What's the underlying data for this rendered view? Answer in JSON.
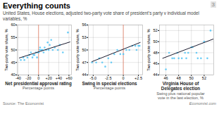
{
  "title": "Everything counts",
  "subtitle": "United States, House elections, adjusted two-party vote share of president’s party v individual model variables, %",
  "source": "Source: The Economist",
  "footer": "Economist.com",
  "annotation": "3",
  "chart_data": [
    {
      "type": "scatter",
      "xlabel": "Net presidential approval rating",
      "xlabel2": "Percentage points",
      "ylabel": "Two-party vote share, %",
      "xlim": [
        -42,
        65
      ],
      "ylim": [
        40,
        60
      ],
      "xticks": [
        -40,
        -20,
        0,
        {
          "value": 20,
          "label": "+20"
        },
        {
          "value": 40,
          "label": "+40"
        },
        {
          "value": 60,
          "label": "+60"
        }
      ],
      "yticks": [
        40,
        45,
        50,
        55,
        60
      ],
      "grid": true,
      "vline": {
        "x": 0,
        "color": "#e8836a"
      },
      "series": [
        {
          "type": "scatter",
          "color": "#5bc8f5",
          "x": [
            -35,
            -30,
            -28,
            -22,
            -18,
            -15,
            -12,
            -10,
            -8,
            -5,
            -3,
            -1,
            0,
            2,
            3,
            5,
            6,
            8,
            10,
            12,
            15,
            18,
            20,
            22,
            25,
            28,
            32,
            38,
            42,
            48,
            58
          ],
          "values": [
            46,
            47,
            46,
            47,
            48,
            49,
            47,
            48,
            48,
            49,
            47,
            49,
            49,
            50,
            51,
            50,
            50,
            50,
            49,
            51,
            50,
            53,
            50,
            52,
            54,
            50,
            51,
            50,
            52,
            49,
            57
          ]
        },
        {
          "type": "line",
          "color": "#1a1a2e",
          "x": [
            -38,
            62
          ],
          "values": [
            46.8,
            53.2
          ]
        }
      ]
    },
    {
      "type": "scatter",
      "xlabel": "Swing in special elections",
      "xlabel2": "Percentage points",
      "ylabel": "Two-party vote share, %",
      "xlim": [
        -5.8,
        3.2
      ],
      "ylim": [
        44,
        56
      ],
      "xticks": [
        {
          "value": -5.0,
          "label": "-5.0"
        },
        -2.5,
        0,
        {
          "value": 2.5,
          "label": "+2.5"
        }
      ],
      "yticks": [
        44,
        47,
        50,
        53,
        56
      ],
      "grid": true,
      "vline": {
        "x": 0,
        "color": "#e8836a"
      },
      "series": [
        {
          "type": "scatter",
          "color": "#5bc8f5",
          "x": [
            -5.2,
            -4.5,
            -4.0,
            -3.5,
            -3.0,
            -2.5,
            -2.0,
            -1.5,
            -1.0,
            -0.5,
            0.0,
            0.5,
            1.0,
            1.5,
            2.0,
            2.2,
            2.5,
            2.7
          ],
          "values": [
            47,
            47,
            48,
            47,
            46,
            48,
            47,
            49,
            50,
            49,
            49,
            50,
            50,
            51,
            51,
            50,
            51,
            51
          ]
        },
        {
          "type": "line",
          "color": "#1a1a2e",
          "x": [
            -5.2,
            2.8
          ],
          "values": [
            47.2,
            51.8
          ]
        }
      ]
    },
    {
      "type": "scatter",
      "xlabel": "Virginia House of\nDelegates election",
      "xlabel2": "Swing plus national popular\nvote in the last election, %",
      "ylabel": "Two-party vote share, %",
      "xlim": [
        45.0,
        53.5
      ],
      "ylim": [
        44,
        53
      ],
      "xticks": [
        46,
        48,
        50,
        52
      ],
      "yticks": [
        44,
        46,
        48,
        50,
        52
      ],
      "grid": true,
      "series": [
        {
          "type": "scatter",
          "color": "#5bc8f5",
          "x": [
            46.0,
            46.5,
            47.0,
            47.3,
            47.8,
            48.0,
            48.5,
            49.0,
            49.2,
            49.5,
            50.0,
            50.2,
            50.8,
            51.0,
            51.5,
            52.0,
            52.5,
            53.0
          ],
          "values": [
            45,
            48,
            47,
            47,
            48,
            47,
            47,
            48,
            47,
            48,
            49,
            49,
            48,
            47,
            47,
            50,
            47,
            52
          ]
        },
        {
          "type": "line",
          "color": "#1a1a2e",
          "x": [
            45.5,
            53.5
          ],
          "values": [
            47.0,
            50.5
          ]
        }
      ]
    }
  ]
}
